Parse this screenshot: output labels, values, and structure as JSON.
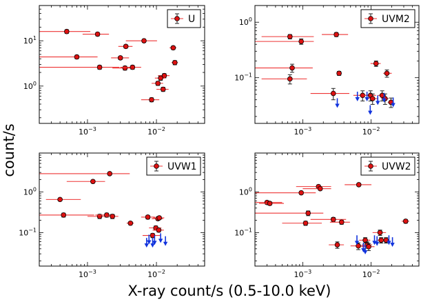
{
  "figure": {
    "ylabel": "count/s",
    "xlabel": "X-ray count/s (0.5-10.0 keV)"
  },
  "colors": {
    "point_fill": "#dd1111",
    "error_bar": "#ee3333",
    "upper_limit_arrow": "#1133dd"
  },
  "chart_data": [
    {
      "type": "scatter",
      "panel": "U",
      "xscale": "log",
      "yscale": "log",
      "xlim": [
        0.0002,
        0.05
      ],
      "ylim": [
        0.15,
        60
      ],
      "xticks": [
        {
          "value": 0.001,
          "label": "10^-3"
        },
        {
          "value": 0.01,
          "label": "10^-2"
        }
      ],
      "yticks": [
        {
          "value": 1,
          "label": "10^0"
        },
        {
          "value": 10,
          "label": "10^1"
        }
      ],
      "legend": {
        "label": "U",
        "position": "top-right"
      },
      "points": [
        {
          "x": 0.0005,
          "y": 16,
          "xerr": [
            0.00035,
            0.0006
          ],
          "yerr": 1.5
        },
        {
          "x": 0.0014,
          "y": 14,
          "xerr": [
            0.00055,
            0.00065
          ],
          "yerr": 1.2
        },
        {
          "x": 0.0007,
          "y": 4.4,
          "xerr": [
            0.0006,
            0.0007
          ],
          "yerr": 0.4
        },
        {
          "x": 0.0036,
          "y": 7.5,
          "xerr": [
            0.0008,
            0.0009
          ],
          "yerr": 0.6
        },
        {
          "x": 0.0066,
          "y": 10,
          "xerr": [
            0.003,
            0.0036
          ],
          "yerr": 0.8
        },
        {
          "x": 0.003,
          "y": 4.2,
          "xerr": [
            0.0008,
            0.001
          ],
          "yerr": 0.35
        },
        {
          "x": 0.0015,
          "y": 2.6,
          "xerr": [
            0.0013,
            0.0014
          ],
          "yerr": 0.25
        },
        {
          "x": 0.0035,
          "y": 2.5,
          "xerr": [
            0.0012,
            0.0013
          ],
          "yerr": 0.25
        },
        {
          "x": 0.0045,
          "y": 2.6,
          "xerr": [
            0.0015,
            0.0015
          ],
          "yerr": 0.25
        },
        {
          "x": 0.0175,
          "y": 7.0,
          "xerr": [
            0.002,
            0.002
          ],
          "yerr": 0.6
        },
        {
          "x": 0.0185,
          "y": 3.3,
          "xerr": [
            0.002,
            0.002
          ],
          "yerr": 0.35
        },
        {
          "x": 0.013,
          "y": 1.7,
          "xerr": [
            0.0025,
            0.0025
          ],
          "yerr": 0.18
        },
        {
          "x": 0.0115,
          "y": 1.5,
          "xerr": [
            0.002,
            0.002
          ],
          "yerr": 0.16
        },
        {
          "x": 0.0105,
          "y": 1.15,
          "xerr": [
            0.002,
            0.002
          ],
          "yerr": 0.12
        },
        {
          "x": 0.0125,
          "y": 0.85,
          "xerr": [
            0.0025,
            0.0025
          ],
          "yerr": 0.09
        },
        {
          "x": 0.0085,
          "y": 0.5,
          "xerr": [
            0.0025,
            0.0025
          ],
          "yerr": 0.05
        }
      ],
      "upper_limits": []
    },
    {
      "type": "scatter",
      "panel": "UVM2",
      "xscale": "log",
      "yscale": "log",
      "xlim": [
        0.0002,
        0.05
      ],
      "ylim": [
        0.015,
        2.0
      ],
      "xticks": [
        {
          "value": 0.001,
          "label": "10^-3"
        },
        {
          "value": 0.01,
          "label": "10^-2"
        }
      ],
      "yticks": [
        {
          "value": 0.1,
          "label": "10^-1"
        },
        {
          "value": 1,
          "label": "10^0"
        }
      ],
      "legend": {
        "label": "UVM2",
        "position": "top-right"
      },
      "points": [
        {
          "x": 0.00065,
          "y": 0.55,
          "xerr": [
            0.0004,
            0.0008
          ],
          "yerr": 0.05
        },
        {
          "x": 0.00095,
          "y": 0.45,
          "xerr": [
            0.00075,
            0.0005
          ],
          "yerr": 0.05
        },
        {
          "x": 0.0031,
          "y": 0.6,
          "xerr": [
            0.0012,
            0.0015
          ],
          "yerr": 0.05
        },
        {
          "x": 0.0007,
          "y": 0.15,
          "xerr": [
            0.0005,
            0.0007
          ],
          "yerr": 0.025
        },
        {
          "x": 0.00065,
          "y": 0.095,
          "xerr": [
            0.0004,
            0.0005
          ],
          "yerr": 0.018
        },
        {
          "x": 0.0034,
          "y": 0.12,
          "xerr": [
            0.0002,
            0.0002
          ],
          "yerr": 0.01
        },
        {
          "x": 0.0118,
          "y": 0.18,
          "xerr": [
            0.002,
            0.002
          ],
          "yerr": 0.02
        },
        {
          "x": 0.017,
          "y": 0.12,
          "xerr": [
            0.002,
            0.003
          ],
          "yerr": 0.018
        },
        {
          "x": 0.0028,
          "y": 0.052,
          "xerr": [
            0.0015,
            0.002
          ],
          "yerr": 0.012
        },
        {
          "x": 0.0075,
          "y": 0.048,
          "xerr": [
            0.002,
            0.003
          ],
          "yerr": 0.01
        },
        {
          "x": 0.0098,
          "y": 0.048,
          "xerr": [
            0.002,
            0.002
          ],
          "yerr": 0.01
        },
        {
          "x": 0.0105,
          "y": 0.042,
          "xerr": [
            0.002,
            0.002
          ],
          "yerr": 0.009
        },
        {
          "x": 0.0145,
          "y": 0.048,
          "xerr": [
            0.002,
            0.002
          ],
          "yerr": 0.01
        },
        {
          "x": 0.016,
          "y": 0.042,
          "xerr": [
            0.002,
            0.002
          ],
          "yerr": 0.009
        },
        {
          "x": 0.0195,
          "y": 0.036,
          "xerr": [
            0.002,
            0.002
          ],
          "yerr": 0.007
        }
      ],
      "upper_limits": [
        {
          "x": 0.0032,
          "y": 0.032
        },
        {
          "x": 0.0063,
          "y": 0.042
        },
        {
          "x": 0.0087,
          "y": 0.042
        },
        {
          "x": 0.0097,
          "y": 0.024
        },
        {
          "x": 0.0125,
          "y": 0.036
        },
        {
          "x": 0.0155,
          "y": 0.04
        },
        {
          "x": 0.021,
          "y": 0.033
        }
      ]
    },
    {
      "type": "scatter",
      "panel": "UVW1",
      "xscale": "log",
      "yscale": "log",
      "xlim": [
        0.0002,
        0.05
      ],
      "ylim": [
        0.015,
        9
      ],
      "xticks": [
        {
          "value": 0.001,
          "label": "10^-3"
        },
        {
          "value": 0.01,
          "label": "10^-2"
        }
      ],
      "yticks": [
        {
          "value": 0.1,
          "label": "10^-1"
        },
        {
          "value": 1,
          "label": "10^0"
        }
      ],
      "legend": {
        "label": "UVW1",
        "position": "top-right"
      },
      "points": [
        {
          "x": 0.0021,
          "y": 2.8,
          "xerr": [
            0.0019,
            0.002
          ],
          "yerr": 0.2
        },
        {
          "x": 0.0012,
          "y": 1.8,
          "xerr": [
            0.0007,
            0.0006
          ],
          "yerr": 0.15
        },
        {
          "x": 0.0004,
          "y": 0.65,
          "xerr": [
            0.00015,
            0.0004
          ],
          "yerr": 0.05
        },
        {
          "x": 0.00045,
          "y": 0.27,
          "xerr": [
            0.00025,
            0.0008
          ],
          "yerr": 0.03
        },
        {
          "x": 0.0015,
          "y": 0.25,
          "xerr": [
            0.0005,
            0.0006
          ],
          "yerr": 0.03
        },
        {
          "x": 0.0019,
          "y": 0.27,
          "xerr": [
            0.0006,
            0.0006
          ],
          "yerr": 0.03
        },
        {
          "x": 0.0023,
          "y": 0.25,
          "xerr": [
            0.0005,
            0.0005
          ],
          "yerr": 0.03
        },
        {
          "x": 0.0042,
          "y": 0.17,
          "xerr": [
            0.0005,
            0.0005
          ],
          "yerr": 0.015
        },
        {
          "x": 0.0075,
          "y": 0.24,
          "xerr": [
            0.0015,
            0.002
          ],
          "yerr": 0.025
        },
        {
          "x": 0.0105,
          "y": 0.22,
          "xerr": [
            0.002,
            0.002
          ],
          "yerr": 0.02
        },
        {
          "x": 0.011,
          "y": 0.23,
          "xerr": [
            0.002,
            0.002
          ],
          "yerr": 0.02
        },
        {
          "x": 0.0098,
          "y": 0.13,
          "xerr": [
            0.002,
            0.002
          ],
          "yerr": 0.015
        },
        {
          "x": 0.0108,
          "y": 0.115,
          "xerr": [
            0.002,
            0.002
          ],
          "yerr": 0.012
        },
        {
          "x": 0.0088,
          "y": 0.085,
          "xerr": [
            0.0025,
            0.0025
          ],
          "yerr": 0.01
        }
      ],
      "upper_limits": [
        {
          "x": 0.0072,
          "y": 0.05
        },
        {
          "x": 0.0078,
          "y": 0.06
        },
        {
          "x": 0.0088,
          "y": 0.05
        },
        {
          "x": 0.0094,
          "y": 0.058
        },
        {
          "x": 0.0115,
          "y": 0.065
        },
        {
          "x": 0.0135,
          "y": 0.055
        }
      ]
    },
    {
      "type": "scatter",
      "panel": "UVW2",
      "xscale": "log",
      "yscale": "log",
      "xlim": [
        0.0002,
        0.05
      ],
      "ylim": [
        0.015,
        9
      ],
      "xticks": [
        {
          "value": 0.001,
          "label": "10^-3"
        },
        {
          "value": 0.01,
          "label": "10^-2"
        }
      ],
      "yticks": [
        {
          "value": 0.1,
          "label": "10^-1"
        },
        {
          "value": 1,
          "label": "10^0"
        }
      ],
      "legend": {
        "label": "UVW2",
        "position": "top-right"
      },
      "points": [
        {
          "x": 0.0066,
          "y": 1.5,
          "xerr": [
            0.0025,
            0.0035
          ],
          "yerr": 0.12
        },
        {
          "x": 0.0017,
          "y": 1.35,
          "xerr": [
            0.0009,
            0.0009
          ],
          "yerr": 0.12
        },
        {
          "x": 0.0018,
          "y": 1.2,
          "xerr": [
            0.0008,
            0.0008
          ],
          "yerr": 0.1
        },
        {
          "x": 0.00095,
          "y": 0.95,
          "xerr": [
            0.00075,
            0.0006
          ],
          "yerr": 0.08
        },
        {
          "x": 0.0003,
          "y": 0.55,
          "xerr": [
            0.0001,
            0.0002
          ],
          "yerr": 0.05
        },
        {
          "x": 0.00033,
          "y": 0.52,
          "xerr": [
            0.0001,
            0.0002
          ],
          "yerr": 0.05
        },
        {
          "x": 0.0012,
          "y": 0.3,
          "xerr": [
            0.001,
            0.0008
          ],
          "yerr": 0.04
        },
        {
          "x": 0.0028,
          "y": 0.21,
          "xerr": [
            0.0015,
            0.0015
          ],
          "yerr": 0.025
        },
        {
          "x": 0.0011,
          "y": 0.17,
          "xerr": [
            0.0006,
            0.0008
          ],
          "yerr": 0.02
        },
        {
          "x": 0.0037,
          "y": 0.18,
          "xerr": [
            0.0012,
            0.0012
          ],
          "yerr": 0.02
        },
        {
          "x": 0.032,
          "y": 0.19,
          "xerr": [
            0.004,
            0.004
          ],
          "yerr": 0.02
        },
        {
          "x": 0.0135,
          "y": 0.1,
          "xerr": [
            0.003,
            0.003
          ],
          "yerr": 0.015
        },
        {
          "x": 0.0032,
          "y": 0.05,
          "xerr": [
            0.0008,
            0.0008
          ],
          "yerr": 0.009
        },
        {
          "x": 0.0065,
          "y": 0.047,
          "xerr": [
            0.0015,
            0.002
          ],
          "yerr": 0.009
        },
        {
          "x": 0.0082,
          "y": 0.065,
          "xerr": [
            0.0015,
            0.0015
          ],
          "yerr": 0.01
        },
        {
          "x": 0.0088,
          "y": 0.05,
          "xerr": [
            0.0015,
            0.0015
          ],
          "yerr": 0.009
        },
        {
          "x": 0.0092,
          "y": 0.045,
          "xerr": [
            0.002,
            0.002
          ],
          "yerr": 0.009
        },
        {
          "x": 0.014,
          "y": 0.065,
          "xerr": [
            0.002,
            0.002
          ],
          "yerr": 0.01
        },
        {
          "x": 0.0165,
          "y": 0.065,
          "xerr": [
            0.002,
            0.002
          ],
          "yerr": 0.01
        }
      ],
      "upper_limits": [
        {
          "x": 0.0062,
          "y": 0.058
        },
        {
          "x": 0.0077,
          "y": 0.038
        },
        {
          "x": 0.0082,
          "y": 0.034
        },
        {
          "x": 0.0112,
          "y": 0.058
        },
        {
          "x": 0.0122,
          "y": 0.055
        },
        {
          "x": 0.0182,
          "y": 0.058
        },
        {
          "x": 0.0205,
          "y": 0.052
        }
      ]
    }
  ]
}
